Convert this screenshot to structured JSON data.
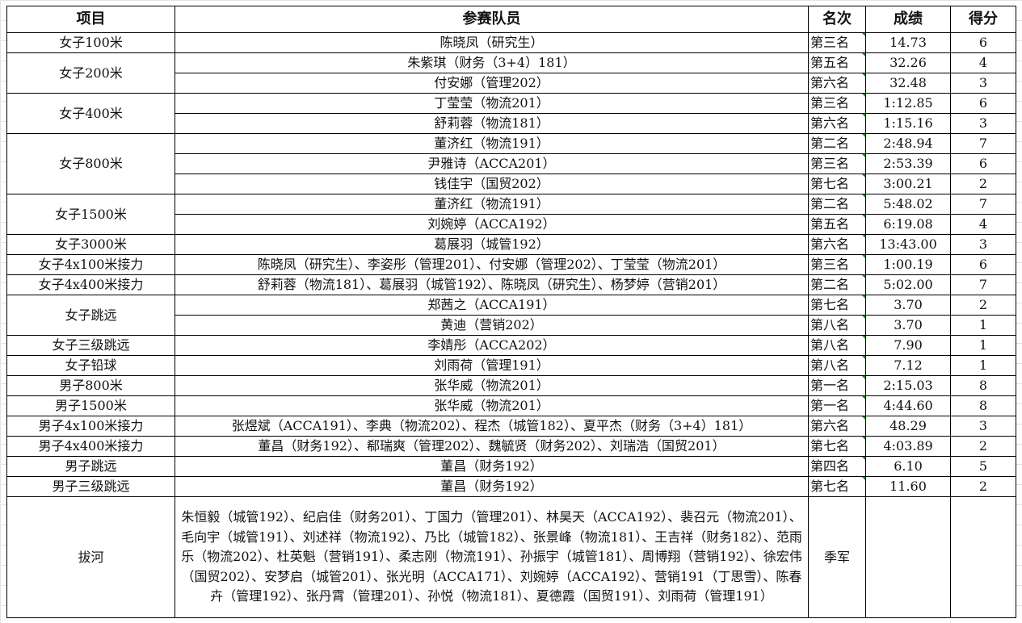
{
  "header": {
    "event": "项目",
    "members": "参赛队员",
    "rank": "名次",
    "result": "成绩",
    "score": "得分"
  },
  "colors": {
    "corner_marker": "#1a8a1a",
    "border": "#000000"
  },
  "events": [
    {
      "name": "女子100米",
      "entries": [
        {
          "member": "陈晓凤（研究生）",
          "rank": "第三名",
          "result": "14.73",
          "score": "6"
        }
      ]
    },
    {
      "name": "女子200米",
      "entries": [
        {
          "member": "朱紫琪（财务（3+4）181）",
          "rank": "第五名",
          "result": "32.26",
          "score": "4"
        },
        {
          "member": "付安娜（管理202）",
          "rank": "第六名",
          "result": "32.48",
          "score": "3"
        }
      ]
    },
    {
      "name": "女子400米",
      "entries": [
        {
          "member": "丁莹莹（物流201）",
          "rank": "第三名",
          "result": "1:12.85",
          "score": "6"
        },
        {
          "member": "舒莉蓉（物流181）",
          "rank": "第六名",
          "result": "1:15.16",
          "score": "3"
        }
      ]
    },
    {
      "name": "女子800米",
      "entries": [
        {
          "member": "董济红（物流191）",
          "rank": "第二名",
          "result": "2:48.94",
          "score": "7"
        },
        {
          "member": "尹雅诗（ACCA201）",
          "rank": "第三名",
          "result": "2:53.39",
          "score": "6"
        },
        {
          "member": "钱佳宇（国贸202）",
          "rank": "第七名",
          "result": "3:00.21",
          "score": "2"
        }
      ]
    },
    {
      "name": "女子1500米",
      "entries": [
        {
          "member": "董济红（物流191）",
          "rank": "第二名",
          "result": "5:48.02",
          "score": "7"
        },
        {
          "member": "刘婉婷（ACCA192）",
          "rank": "第五名",
          "result": "6:19.08",
          "score": "4"
        }
      ]
    },
    {
      "name": "女子3000米",
      "entries": [
        {
          "member": "葛展羽（城管192）",
          "rank": "第六名",
          "result": "13:43.00",
          "score": "3"
        }
      ]
    },
    {
      "name": "女子4x100米接力",
      "entries": [
        {
          "member": "陈晓凤（研究生）、李姿彤（管理201）、付安娜（管理202）、丁莹莹（物流201）",
          "rank": "第三名",
          "result": "1:00.19",
          "score": "6"
        }
      ]
    },
    {
      "name": "女子4x400米接力",
      "entries": [
        {
          "member": "舒莉蓉（物流181）、葛展羽（城管192）、陈晓凤（研究生）、杨梦婷（营销201）",
          "rank": "第二名",
          "result": "5:02.00",
          "score": "7"
        }
      ]
    },
    {
      "name": "女子跳远",
      "entries": [
        {
          "member": "郑茜之（ACCA191）",
          "rank": "第七名",
          "result": "3.70",
          "score": "2"
        },
        {
          "member": "黄迪（营销202）",
          "rank": "第八名",
          "result": "3.70",
          "score": "1"
        }
      ]
    },
    {
      "name": "女子三级跳远",
      "entries": [
        {
          "member": "李婧彤（ACCA202）",
          "rank": "第八名",
          "result": "7.90",
          "score": "1"
        }
      ]
    },
    {
      "name": "女子铅球",
      "entries": [
        {
          "member": "刘雨荷（管理191）",
          "rank": "第八名",
          "result": "7.12",
          "score": "1"
        }
      ]
    },
    {
      "name": "男子800米",
      "entries": [
        {
          "member": "张华威（物流201）",
          "rank": "第一名",
          "result": "2:15.03",
          "score": "8"
        }
      ]
    },
    {
      "name": "男子1500米",
      "entries": [
        {
          "member": "张华威（物流201）",
          "rank": "第一名",
          "result": "4:44.60",
          "score": "8"
        }
      ]
    },
    {
      "name": "男子4x100米接力",
      "entries": [
        {
          "member": "张煜斌（ACCA191）、李典（物流202）、程杰（城管182）、夏平杰（财务（3+4）181）",
          "rank": "第六名",
          "result": "48.29",
          "score": "3"
        }
      ]
    },
    {
      "name": "男子4x400米接力",
      "entries": [
        {
          "member": "董昌（财务192）、郗瑞爽（管理202）、魏毓贤（财务202）、刘瑞浩（国贸201）",
          "rank": "第七名",
          "result": "4:03.89",
          "score": "2"
        }
      ]
    },
    {
      "name": "男子跳远",
      "entries": [
        {
          "member": "董昌（财务192）",
          "rank": "第四名",
          "result": "6.10",
          "score": "5"
        }
      ]
    },
    {
      "name": "男子三级跳远",
      "entries": [
        {
          "member": "董昌（财务192）",
          "rank": "第七名",
          "result": "11.60",
          "score": "2"
        }
      ]
    }
  ],
  "tug_of_war": {
    "name": "拔河",
    "members": "朱恒毅（城管192）、纪启佳（财务201）、丁国力（管理201）、林昊天（ACCA192）、裴召元（物流201）、毛向宇（城管191）、刘述祥（物流192）、乃比（城管182）、张景峰（物流181）、王吉祥（财务182）、范雨乐（物流202）、杜英魁（营销191）、柔志刚（物流191）、孙振宇（城管181）、周博翔（营销192）、徐宏伟（国贸202）、安梦启（城管201）、张光明（ACCA171）、刘婉婷（ACCA192）、营销191（丁思雪）、陈春卉（管理192）、张丹霄（管理201）、孙悦（物流181）、夏德霞（国贸191）、刘雨荷（管理191）",
    "rank": "季军",
    "result": "",
    "score": ""
  }
}
